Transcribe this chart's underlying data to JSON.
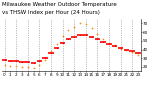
{
  "title": "Milwaukee Weather Outdoor Temperature",
  "subtitle": "vs THSW Index per Hour (24 Hours)",
  "bg_color": "#ffffff",
  "plot_bg": "#ffffff",
  "hours": [
    0,
    1,
    2,
    3,
    4,
    5,
    6,
    7,
    8,
    9,
    10,
    11,
    12,
    13,
    14,
    15,
    16,
    17,
    18,
    19,
    20,
    21,
    22,
    23
  ],
  "temp": [
    28,
    27,
    27,
    26,
    26,
    25,
    27,
    30,
    36,
    42,
    48,
    52,
    55,
    57,
    57,
    55,
    52,
    49,
    46,
    44,
    42,
    40,
    38,
    36
  ],
  "thsw": [
    22,
    21,
    21,
    20,
    20,
    19,
    22,
    28,
    38,
    47,
    56,
    62,
    66,
    70,
    69,
    65,
    58,
    52,
    47,
    45,
    41,
    39,
    37,
    34
  ],
  "ylim_min": 15,
  "ylim_max": 75,
  "temp_color": "#ff0000",
  "thsw_color": "#ff8800",
  "black_color": "#000000",
  "grid_color": "#888888",
  "title_color": "#000000",
  "title_fontsize": 4.0,
  "tick_fontsize": 3.0,
  "ylabel_fontsize": 3.0,
  "yticks": [
    20,
    30,
    40,
    50,
    60,
    70
  ],
  "grid_hours": [
    0,
    2,
    4,
    6,
    8,
    10,
    12,
    14,
    16,
    18,
    20,
    22
  ]
}
